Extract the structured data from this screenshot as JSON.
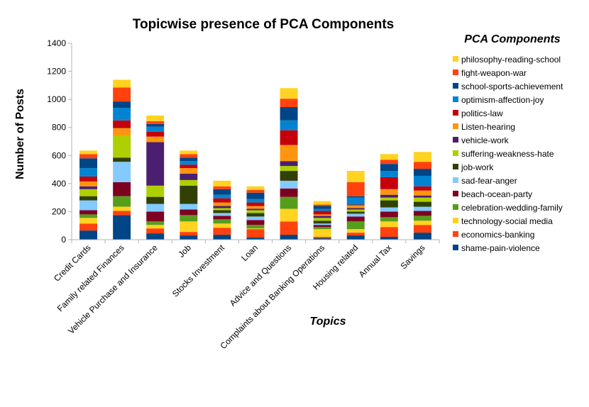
{
  "chart_data": {
    "type": "bar",
    "stacked": true,
    "title": "Topicwise presence of PCA Components",
    "xlabel": "Topics",
    "ylabel": "Number of Posts",
    "ylim": [
      0,
      1400
    ],
    "yticks": [
      0,
      200,
      400,
      600,
      800,
      1000,
      1200,
      1400
    ],
    "grid": false,
    "legend_title": "PCA Components",
    "legend_position": "right",
    "categories": [
      "Credit Cards",
      "Family related Finances",
      "Vehicle Purchase and Insurance",
      "Job",
      "Stocks Investment",
      "Loan",
      "Advice and Questions",
      "Complaints about Banking Operations",
      "Housing related",
      "Annual Tax",
      "Savings"
    ],
    "series": [
      {
        "name": "shame-pain-violence",
        "color": "#004586",
        "values": [
          65,
          175,
          45,
          30,
          35,
          15,
          35,
          10,
          30,
          20,
          50
        ]
      },
      {
        "name": "economics-banking",
        "color": "#ff420e",
        "values": [
          50,
          30,
          35,
          25,
          50,
          60,
          95,
          10,
          20,
          70,
          55
        ]
      },
      {
        "name": "technology-social media",
        "color": "#ffd320",
        "values": [
          40,
          30,
          25,
          75,
          30,
          5,
          90,
          55,
          25,
          40,
          30
        ]
      },
      {
        "name": "celebration-wedding-family",
        "color": "#579d1c",
        "values": [
          25,
          75,
          25,
          45,
          30,
          25,
          85,
          15,
          55,
          30,
          35
        ]
      },
      {
        "name": "beach-ocean-party",
        "color": "#7e0021",
        "values": [
          30,
          100,
          70,
          40,
          25,
          35,
          60,
          15,
          35,
          40,
          35
        ]
      },
      {
        "name": "sad-fear-anger",
        "color": "#83caff",
        "values": [
          70,
          145,
          55,
          40,
          20,
          25,
          55,
          10,
          20,
          30,
          30
        ]
      },
      {
        "name": "job-work",
        "color": "#314004",
        "values": [
          30,
          30,
          50,
          130,
          20,
          25,
          70,
          20,
          15,
          50,
          35
        ]
      },
      {
        "name": "suffering-weakness-hate",
        "color": "#aecf00",
        "values": [
          50,
          155,
          80,
          40,
          15,
          20,
          35,
          20,
          15,
          20,
          30
        ]
      },
      {
        "name": "vehicle-work",
        "color": "#4b1f6f",
        "values": [
          20,
          0,
          310,
          45,
          15,
          10,
          35,
          15,
          10,
          20,
          15
        ]
      },
      {
        "name": "Listen-hearing",
        "color": "#ff950e",
        "values": [
          35,
          55,
          40,
          40,
          25,
          20,
          115,
          10,
          20,
          40,
          35
        ]
      },
      {
        "name": "politics-law",
        "color": "#c5000b",
        "values": [
          35,
          55,
          35,
          25,
          30,
          25,
          105,
          25,
          5,
          85,
          30
        ]
      },
      {
        "name": "optimism-affection-joy",
        "color": "#0084d1",
        "values": [
          60,
          90,
          35,
          25,
          25,
          25,
          70,
          15,
          50,
          45,
          75
        ]
      },
      {
        "name": "school-sports-achievement",
        "color": "#004586",
        "values": [
          70,
          45,
          20,
          25,
          40,
          45,
          95,
          20,
          10,
          50,
          50
        ]
      },
      {
        "name": "fight-weapon-war",
        "color": "#ff420e",
        "values": [
          30,
          100,
          20,
          25,
          20,
          20,
          60,
          10,
          100,
          30,
          50
        ]
      },
      {
        "name": "philosophy-reading-school",
        "color": "#ffd320",
        "values": [
          25,
          55,
          40,
          25,
          40,
          25,
          75,
          25,
          80,
          40,
          70
        ]
      }
    ]
  }
}
